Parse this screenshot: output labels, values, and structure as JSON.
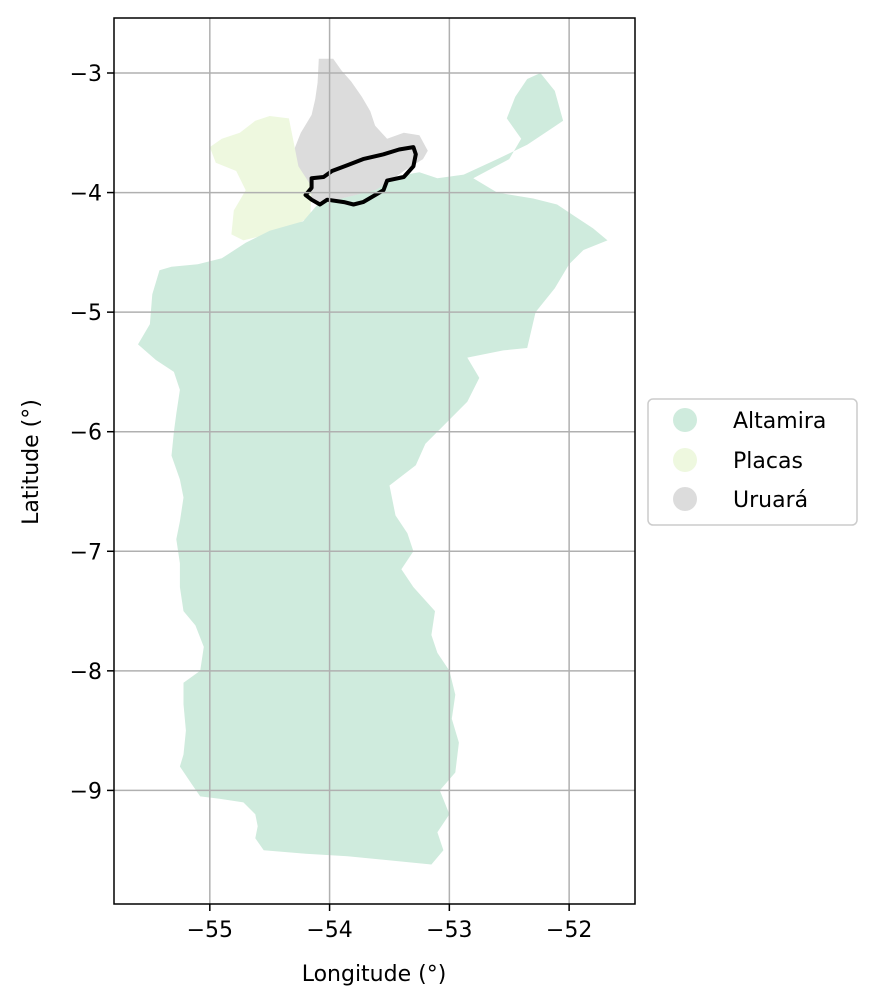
{
  "chart_data": {
    "type": "map",
    "xlabel": "Longitude (°)",
    "ylabel": "Latitude (°)",
    "xlim": [
      -55.8,
      -51.45
    ],
    "ylim": [
      -9.95,
      -2.54
    ],
    "xticks": [
      {
        "value": -55,
        "label": "−55"
      },
      {
        "value": -54,
        "label": "−54"
      },
      {
        "value": -53,
        "label": "−53"
      },
      {
        "value": -52,
        "label": "−52"
      }
    ],
    "yticks": [
      {
        "value": -3,
        "label": "−3"
      },
      {
        "value": -4,
        "label": "−4"
      },
      {
        "value": -5,
        "label": "−5"
      },
      {
        "value": -6,
        "label": "−6"
      },
      {
        "value": -7,
        "label": "−7"
      },
      {
        "value": -8,
        "label": "−8"
      },
      {
        "value": -9,
        "label": "−9"
      }
    ],
    "grid": true,
    "legend_position": "center-right outside",
    "legend": [
      {
        "label": "Altamira",
        "color": "#cfebdd"
      },
      {
        "label": "Placas",
        "color": "#eef8df"
      },
      {
        "label": "Uruará",
        "color": "#dcdcdc"
      }
    ],
    "regions": [
      {
        "name": "Uruará",
        "color": "#dcdcdc",
        "coords": [
          [
            -54.09,
            -2.88
          ],
          [
            -53.97,
            -2.88
          ],
          [
            -53.9,
            -2.98
          ],
          [
            -53.82,
            -3.07
          ],
          [
            -53.73,
            -3.2
          ],
          [
            -53.66,
            -3.32
          ],
          [
            -53.62,
            -3.44
          ],
          [
            -53.52,
            -3.55
          ],
          [
            -53.38,
            -3.5
          ],
          [
            -53.25,
            -3.52
          ],
          [
            -53.18,
            -3.65
          ],
          [
            -53.22,
            -3.72
          ],
          [
            -53.38,
            -3.82
          ],
          [
            -53.6,
            -3.98
          ],
          [
            -53.9,
            -4.05
          ],
          [
            -54.1,
            -4.1
          ],
          [
            -54.25,
            -3.98
          ],
          [
            -54.3,
            -3.83
          ],
          [
            -54.3,
            -3.65
          ],
          [
            -54.24,
            -3.5
          ],
          [
            -54.15,
            -3.35
          ],
          [
            -54.12,
            -3.22
          ],
          [
            -54.1,
            -3.08
          ]
        ]
      },
      {
        "name": "Placas",
        "color": "#eef8df",
        "coords": [
          [
            -54.5,
            -3.36
          ],
          [
            -54.34,
            -3.38
          ],
          [
            -54.3,
            -3.58
          ],
          [
            -54.26,
            -3.78
          ],
          [
            -54.15,
            -3.95
          ],
          [
            -54.16,
            -4.2
          ],
          [
            -54.3,
            -4.28
          ],
          [
            -54.52,
            -4.35
          ],
          [
            -54.72,
            -4.4
          ],
          [
            -54.82,
            -4.35
          ],
          [
            -54.8,
            -4.15
          ],
          [
            -54.7,
            -3.98
          ],
          [
            -54.78,
            -3.82
          ],
          [
            -54.95,
            -3.75
          ],
          [
            -55.0,
            -3.62
          ],
          [
            -54.9,
            -3.55
          ],
          [
            -54.75,
            -3.5
          ],
          [
            -54.62,
            -3.4
          ]
        ]
      },
      {
        "name": "Altamira",
        "color": "#cfebdd",
        "coords": [
          [
            -52.24,
            -3.0
          ],
          [
            -52.12,
            -3.15
          ],
          [
            -52.05,
            -3.4
          ],
          [
            -52.2,
            -3.5
          ],
          [
            -52.35,
            -3.6
          ],
          [
            -52.6,
            -3.72
          ],
          [
            -52.88,
            -3.85
          ],
          [
            -53.1,
            -3.88
          ],
          [
            -53.25,
            -3.83
          ],
          [
            -53.42,
            -3.86
          ],
          [
            -53.62,
            -3.98
          ],
          [
            -53.9,
            -4.05
          ],
          [
            -54.1,
            -4.1
          ],
          [
            -54.22,
            -4.24
          ],
          [
            -54.5,
            -4.32
          ],
          [
            -54.7,
            -4.42
          ],
          [
            -54.9,
            -4.55
          ],
          [
            -55.1,
            -4.6
          ],
          [
            -55.32,
            -4.62
          ],
          [
            -55.42,
            -4.65
          ],
          [
            -55.48,
            -4.85
          ],
          [
            -55.5,
            -5.1
          ],
          [
            -55.6,
            -5.27
          ],
          [
            -55.45,
            -5.4
          ],
          [
            -55.3,
            -5.5
          ],
          [
            -55.25,
            -5.65
          ],
          [
            -55.28,
            -5.85
          ],
          [
            -55.3,
            -6.0
          ],
          [
            -55.32,
            -6.2
          ],
          [
            -55.25,
            -6.4
          ],
          [
            -55.22,
            -6.55
          ],
          [
            -55.25,
            -6.75
          ],
          [
            -55.28,
            -6.9
          ],
          [
            -55.25,
            -7.1
          ],
          [
            -55.25,
            -7.3
          ],
          [
            -55.22,
            -7.5
          ],
          [
            -55.12,
            -7.62
          ],
          [
            -55.05,
            -7.8
          ],
          [
            -55.08,
            -8.0
          ],
          [
            -55.22,
            -8.1
          ],
          [
            -55.22,
            -8.28
          ],
          [
            -55.2,
            -8.5
          ],
          [
            -55.22,
            -8.7
          ],
          [
            -55.25,
            -8.8
          ],
          [
            -55.15,
            -8.95
          ],
          [
            -55.08,
            -9.05
          ],
          [
            -54.92,
            -9.07
          ],
          [
            -54.72,
            -9.1
          ],
          [
            -54.62,
            -9.2
          ],
          [
            -54.6,
            -9.3
          ],
          [
            -54.62,
            -9.4
          ],
          [
            -54.55,
            -9.5
          ],
          [
            -54.2,
            -9.53
          ],
          [
            -53.85,
            -9.55
          ],
          [
            -53.15,
            -9.62
          ],
          [
            -53.05,
            -9.5
          ],
          [
            -53.1,
            -9.35
          ],
          [
            -53.0,
            -9.2
          ],
          [
            -53.08,
            -9.0
          ],
          [
            -52.95,
            -8.85
          ],
          [
            -52.92,
            -8.6
          ],
          [
            -52.98,
            -8.4
          ],
          [
            -52.95,
            -8.2
          ],
          [
            -53.0,
            -8.0
          ],
          [
            -53.1,
            -7.85
          ],
          [
            -53.15,
            -7.7
          ],
          [
            -53.12,
            -7.5
          ],
          [
            -53.3,
            -7.3
          ],
          [
            -53.4,
            -7.15
          ],
          [
            -53.3,
            -7.0
          ],
          [
            -53.35,
            -6.85
          ],
          [
            -53.45,
            -6.7
          ],
          [
            -53.5,
            -6.45
          ],
          [
            -53.28,
            -6.28
          ],
          [
            -53.2,
            -6.1
          ],
          [
            -53.05,
            -5.95
          ],
          [
            -52.85,
            -5.75
          ],
          [
            -52.75,
            -5.55
          ],
          [
            -52.85,
            -5.38
          ],
          [
            -52.55,
            -5.32
          ],
          [
            -52.35,
            -5.3
          ],
          [
            -52.28,
            -5.0
          ],
          [
            -52.12,
            -4.8
          ],
          [
            -52.0,
            -4.6
          ],
          [
            -51.88,
            -4.48
          ],
          [
            -51.68,
            -4.4
          ],
          [
            -51.8,
            -4.3
          ],
          [
            -51.95,
            -4.2
          ],
          [
            -52.1,
            -4.1
          ],
          [
            -52.3,
            -4.05
          ],
          [
            -52.6,
            -4.0
          ],
          [
            -52.8,
            -3.88
          ],
          [
            -52.5,
            -3.72
          ],
          [
            -52.4,
            -3.55
          ],
          [
            -52.52,
            -3.38
          ],
          [
            -52.45,
            -3.2
          ],
          [
            -52.35,
            -3.05
          ]
        ]
      }
    ],
    "outline": {
      "color": "#000000",
      "coords": [
        [
          -54.15,
          -3.88
        ],
        [
          -54.05,
          -3.87
        ],
        [
          -53.98,
          -3.82
        ],
        [
          -53.85,
          -3.77
        ],
        [
          -53.72,
          -3.72
        ],
        [
          -53.55,
          -3.68
        ],
        [
          -53.42,
          -3.64
        ],
        [
          -53.3,
          -3.62
        ],
        [
          -53.28,
          -3.68
        ],
        [
          -53.3,
          -3.78
        ],
        [
          -53.38,
          -3.87
        ],
        [
          -53.52,
          -3.9
        ],
        [
          -53.55,
          -3.98
        ],
        [
          -53.72,
          -4.08
        ],
        [
          -53.8,
          -4.1
        ],
        [
          -53.88,
          -4.08
        ],
        [
          -54.02,
          -4.06
        ],
        [
          -54.08,
          -4.1
        ],
        [
          -54.15,
          -4.06
        ],
        [
          -54.2,
          -4.02
        ],
        [
          -54.15,
          -3.96
        ]
      ]
    }
  }
}
